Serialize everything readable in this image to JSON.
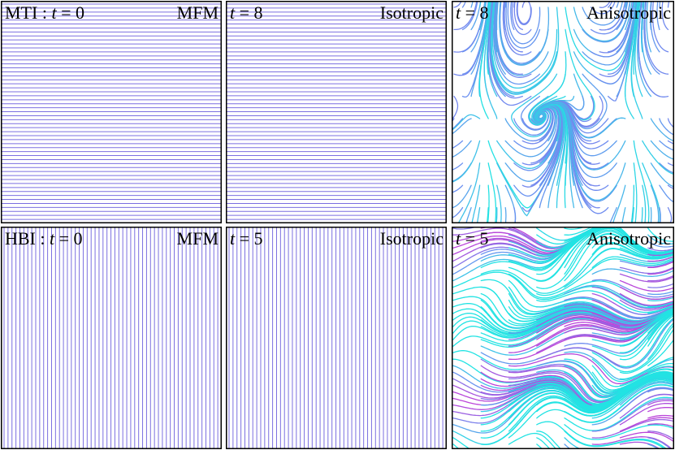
{
  "figure": {
    "panels": [
      {
        "id": "mti-mfm",
        "left_label": "MTI : t = 0",
        "right_label": "MFM",
        "field": "horizontal",
        "line_count": 55
      },
      {
        "id": "mti-iso",
        "left_label": "t = 8",
        "right_label": "Isotropic",
        "field": "horizontal",
        "line_count": 55
      },
      {
        "id": "mti-aniso",
        "left_label": "t = 8",
        "right_label": "Anisotropic",
        "field": "turbulent-rolls"
      },
      {
        "id": "hbi-mfm",
        "left_label": "HBI : t = 0",
        "right_label": "MFM",
        "field": "vertical",
        "line_count": 55
      },
      {
        "id": "hbi-iso",
        "left_label": "t = 5",
        "right_label": "Isotropic",
        "field": "vertical",
        "line_count": 55
      },
      {
        "id": "hbi-aniso",
        "left_label": "t = 5",
        "right_label": "Anisotropic",
        "field": "turbulent-sheared"
      }
    ],
    "colors": {
      "line_primary": "#7b6fe0",
      "line_cyan": "#22e3e3",
      "line_blue": "#6c8ff0",
      "line_magenta": "#c43bd6",
      "border": "#000000"
    }
  }
}
